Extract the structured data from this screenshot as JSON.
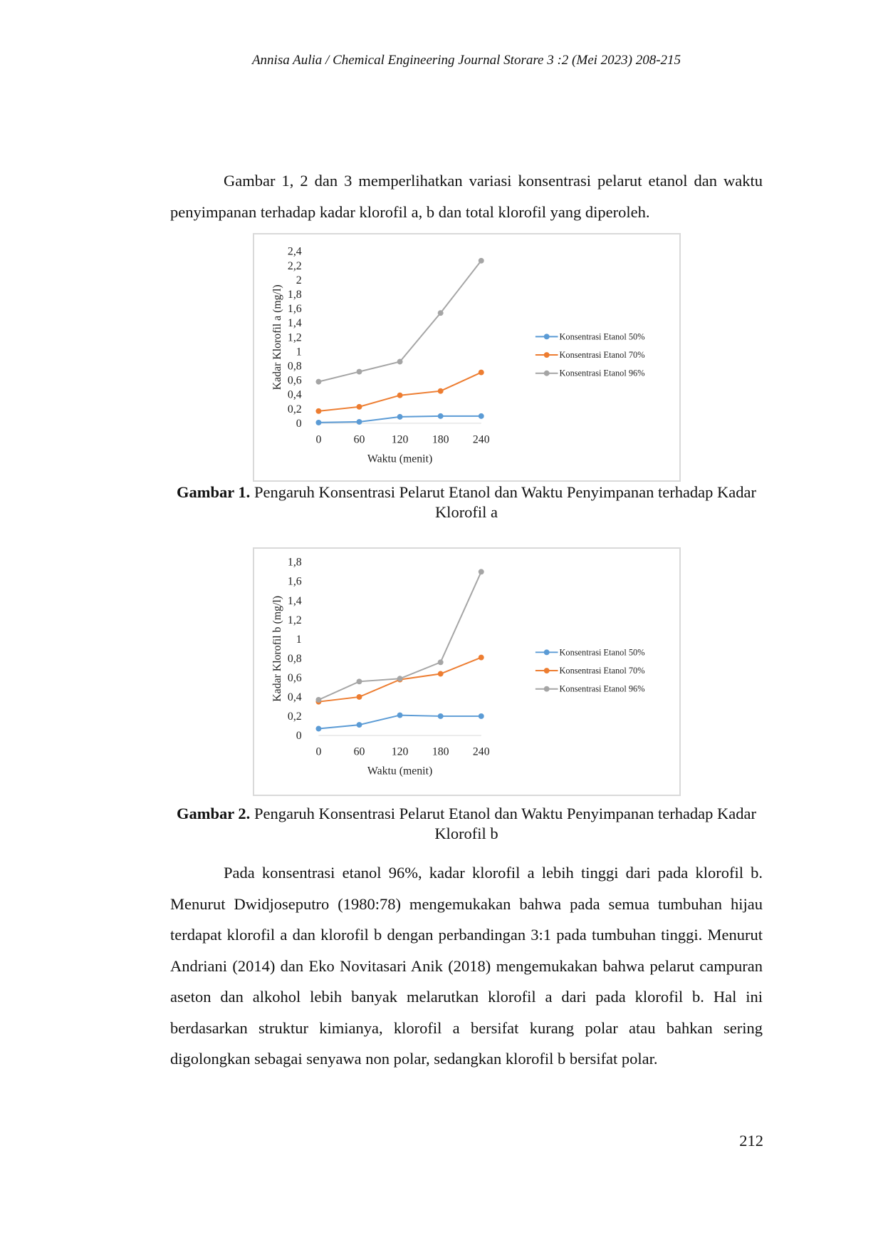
{
  "header": "Annisa Aulia / Chemical Engineering Journal Storare  3 :2 (Mei 2023) 208-215",
  "intro": "Gambar 1, 2 dan 3 memperlihatkan variasi konsentrasi pelarut etanol dan waktu penyimpanan terhadap kadar klorofil a, b dan total klorofil yang diperoleh.",
  "captions": [
    {
      "label": "Gambar 1.",
      "text": " Pengaruh Konsentrasi Pelarut Etanol dan Waktu Penyimpanan terhadap Kadar Klorofil a"
    },
    {
      "label": "Gambar 2.",
      "text": " Pengaruh Konsentrasi Pelarut Etanol dan Waktu Penyimpanan terhadap Kadar Klorofil b"
    }
  ],
  "body": "Pada konsentrasi etanol 96%, kadar klorofil a lebih tinggi dari pada klorofil b. Menurut Dwidjoseputro (1980:78) mengemukakan bahwa pada semua tumbuhan hijau terdapat klorofil a dan klorofil b dengan perbandingan 3:1 pada tumbuhan tinggi. Menurut Andriani (2014) dan Eko Novitasari Anik (2018) mengemukakan bahwa pelarut campuran aseton dan alkohol lebih banyak melarutkan klorofil a dari pada klorofil b. Hal ini berdasarkan struktur kimianya, klorofil a bersifat kurang polar atau bahkan sering digolongkan sebagai senyawa non polar, sedangkan klorofil b bersifat polar.",
  "page_number": "212",
  "chart_data": [
    {
      "type": "line",
      "xlabel": "Waktu (menit)",
      "ylabel": "Kadar Klorofil a (mg/l)",
      "categories": [
        "0",
        "60",
        "120",
        "180",
        "240"
      ],
      "yticks": [
        "0",
        "0,2",
        "0,4",
        "0,6",
        "0,8",
        "1",
        "1,2",
        "1,4",
        "1,6",
        "1,8",
        "2",
        "2,2",
        "2,4"
      ],
      "ylim": [
        0,
        2.4
      ],
      "grid": false,
      "legend": "right",
      "series": [
        {
          "name": "Konsentrasi Etanol 50%",
          "color": "#5b9bd5",
          "values": [
            0.01,
            0.02,
            0.09,
            0.1,
            0.1
          ]
        },
        {
          "name": "Konsentrasi Etanol 70%",
          "color": "#ed7d31",
          "values": [
            0.17,
            0.23,
            0.39,
            0.45,
            0.71
          ]
        },
        {
          "name": "Konsentrasi Etanol 96%",
          "color": "#a5a5a5",
          "values": [
            0.58,
            0.72,
            0.86,
            1.54,
            2.27
          ]
        }
      ]
    },
    {
      "type": "line",
      "xlabel": "Waktu (menit)",
      "ylabel": "Kadar Klorofil b (mg/l)",
      "categories": [
        "0",
        "60",
        "120",
        "180",
        "240"
      ],
      "yticks": [
        "0",
        "0,2",
        "0,4",
        "0,6",
        "0,8",
        "1",
        "1,2",
        "1,4",
        "1,6",
        "1,8"
      ],
      "ylim": [
        0,
        1.8
      ],
      "grid": false,
      "legend": "right",
      "series": [
        {
          "name": "Konsentrasi Etanol 50%",
          "color": "#5b9bd5",
          "values": [
            0.07,
            0.11,
            0.21,
            0.2,
            0.2
          ]
        },
        {
          "name": "Konsentrasi Etanol 70%",
          "color": "#ed7d31",
          "values": [
            0.35,
            0.4,
            0.58,
            0.64,
            0.81
          ]
        },
        {
          "name": "Konsentrasi Etanol 96%",
          "color": "#a5a5a5",
          "values": [
            0.37,
            0.56,
            0.59,
            0.76,
            1.7
          ]
        }
      ]
    }
  ]
}
